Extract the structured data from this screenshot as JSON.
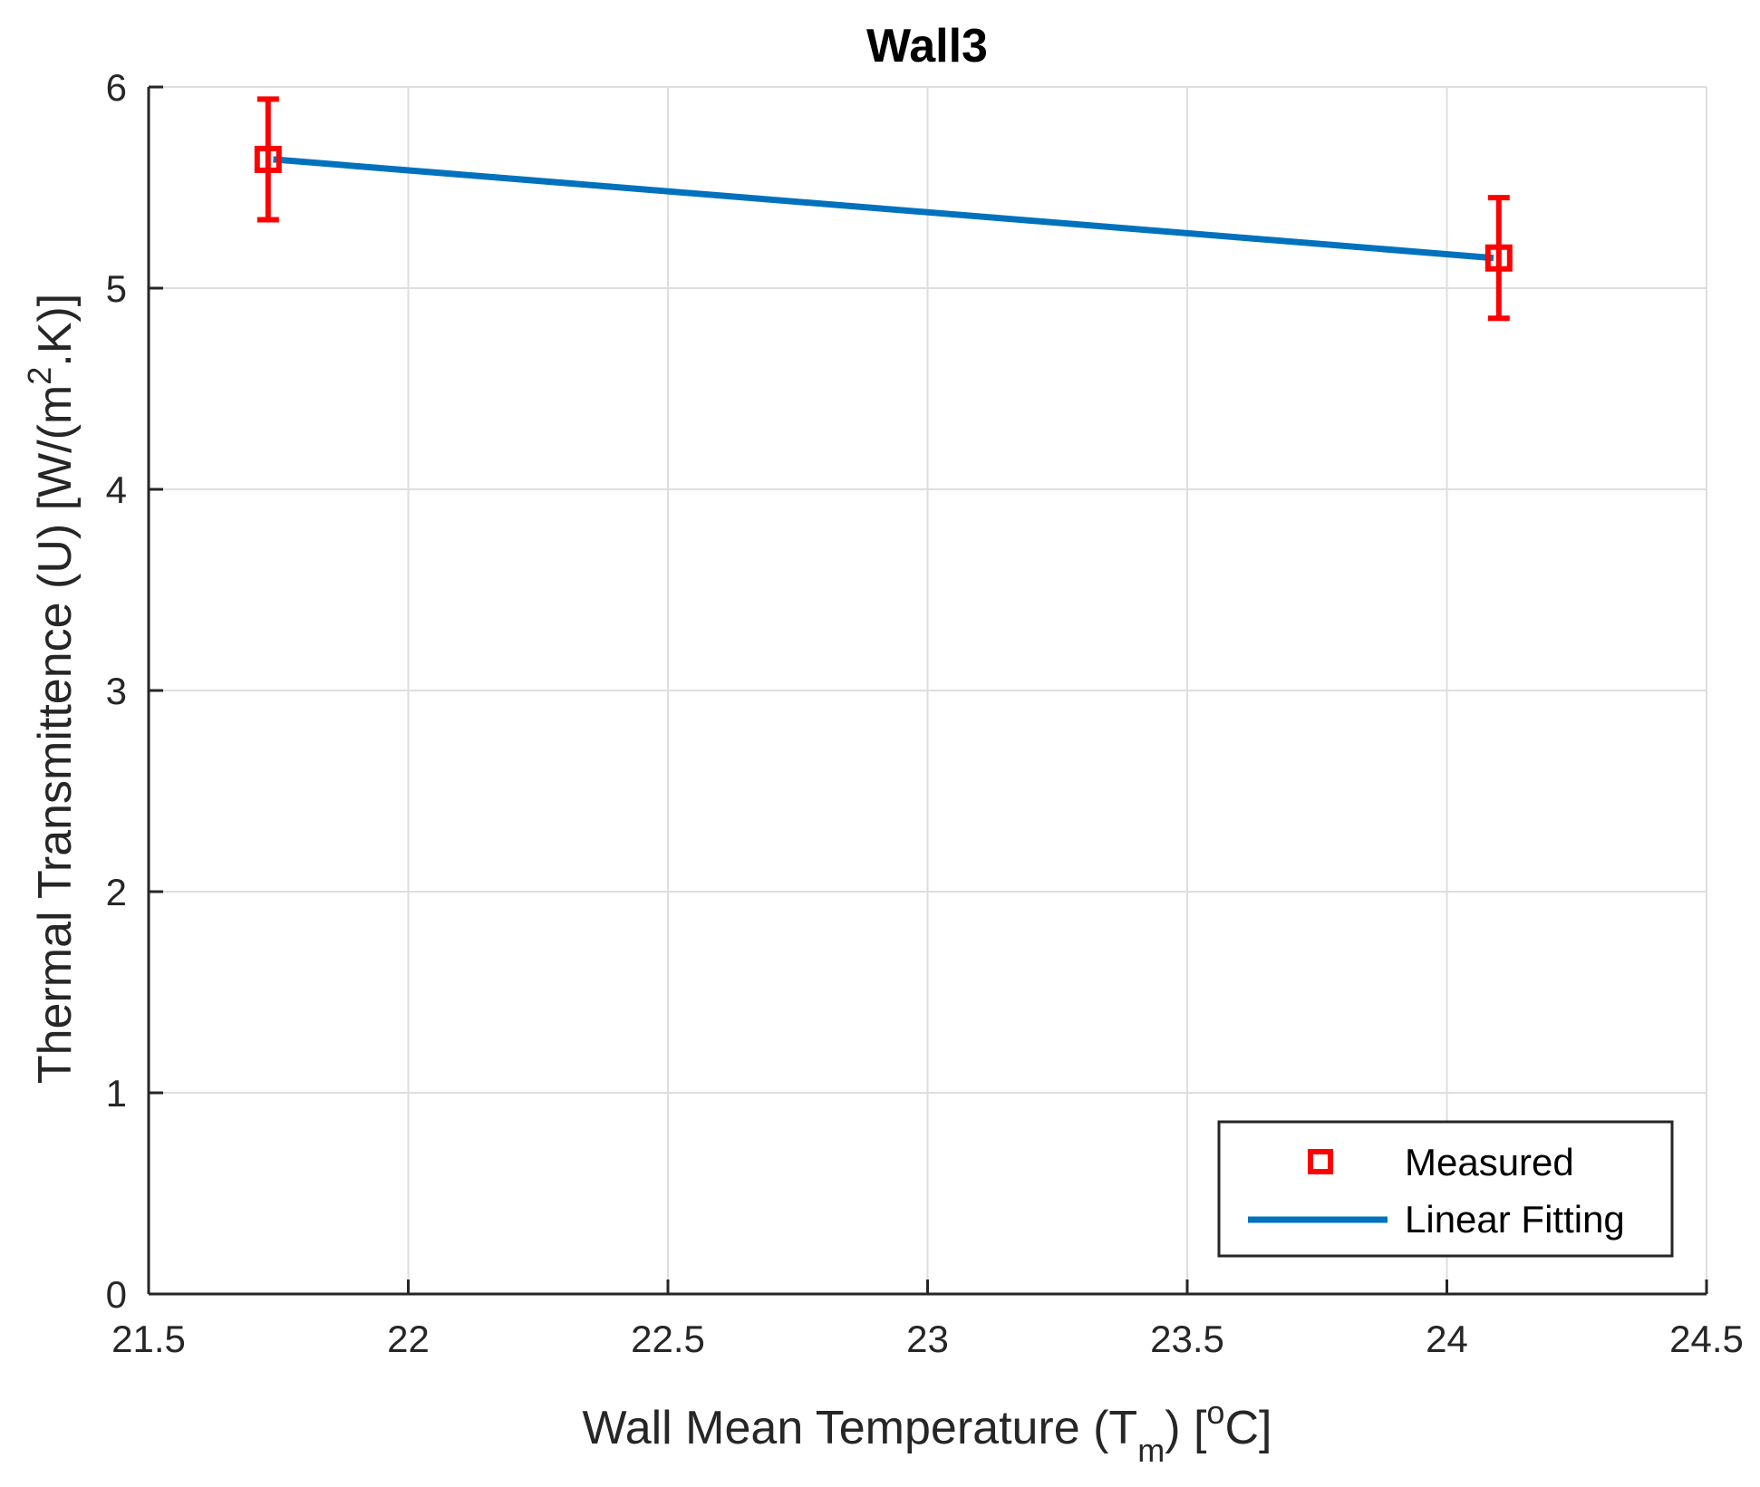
{
  "chart_data": {
    "type": "scatter",
    "title": "Wall3",
    "xlabel": {
      "prefix": "Wall Mean Temperature (T",
      "sub": "m",
      "middle": ") [",
      "sup": "o",
      "suffix": "C]"
    },
    "ylabel": {
      "prefix": "Thermal Transmittence (U) [W/(m",
      "sup": "2",
      "suffix": ".K)]"
    },
    "xlim": [
      21.5,
      24.5
    ],
    "ylim": [
      0,
      6
    ],
    "xticks": [
      21.5,
      22,
      22.5,
      23,
      23.5,
      24,
      24.5
    ],
    "xtick_labels": [
      "21.5",
      "22",
      "22.5",
      "23",
      "23.5",
      "24",
      "24.5"
    ],
    "yticks": [
      0,
      1,
      2,
      3,
      4,
      5,
      6
    ],
    "ytick_labels": [
      "0",
      "1",
      "2",
      "3",
      "4",
      "5",
      "6"
    ],
    "grid": true,
    "legend_position": "bottom-right",
    "series": [
      {
        "name": "Measured",
        "kind": "errorbar",
        "color": "#ff0000",
        "marker": "square",
        "x": [
          21.73,
          24.1
        ],
        "y": [
          5.64,
          5.15
        ],
        "err_low": [
          0.3,
          0.3
        ],
        "err_high": [
          0.3,
          0.3
        ]
      },
      {
        "name": "Linear Fitting",
        "kind": "line",
        "color": "#0072bd",
        "x": [
          21.74,
          24.09
        ],
        "y": [
          5.64,
          5.15
        ]
      }
    ]
  }
}
